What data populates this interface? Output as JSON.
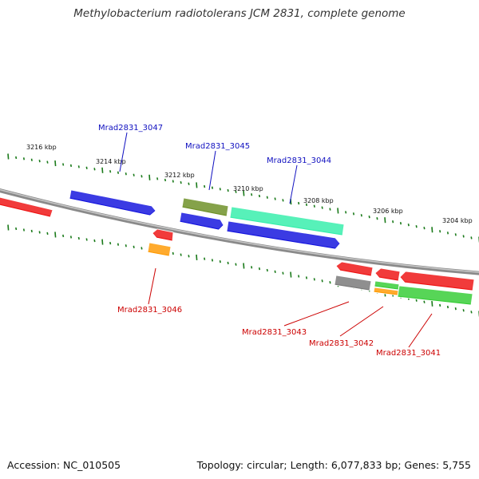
{
  "title": "Methylobacterium radiotolerans JCM 2831, complete genome",
  "footer": {
    "accession": "Accession: NC_010505",
    "summary": "Topology: circular; Length: 6,077,833 bp; Genes: 5,755"
  },
  "colors": {
    "backbone": "#7a7a7a",
    "tick": "#1a7a1a",
    "label_blue": "#1010c0",
    "label_red": "#cc0000",
    "red": "#ee1111",
    "blue": "#1111dd",
    "olive": "#6b8e23",
    "aquamarine": "#33eeaa",
    "orange": "#ff9900",
    "grey": "#777777",
    "green": "#33cc33"
  },
  "kbp_ticks": [
    "3216 kbp",
    "3214 kbp",
    "3212 kbp",
    "3210 kbp",
    "3208 kbp",
    "3206 kbp",
    "3204 kbp"
  ],
  "gene_labels": [
    {
      "text": "Mrad2831_3047",
      "color": "label_blue"
    },
    {
      "text": "Mrad2831_3045",
      "color": "label_blue"
    },
    {
      "text": "Mrad2831_3044",
      "color": "label_blue"
    },
    {
      "text": "Mrad2831_3046",
      "color": "label_red"
    },
    {
      "text": "Mrad2831_3043",
      "color": "label_red"
    },
    {
      "text": "Mrad2831_3042",
      "color": "label_red"
    },
    {
      "text": "Mrad2831_3041",
      "color": "label_red"
    }
  ],
  "features": [
    {
      "color": "red"
    },
    {
      "color": "blue"
    },
    {
      "color": "olive"
    },
    {
      "color": "blue"
    },
    {
      "color": "aquamarine"
    },
    {
      "color": "blue"
    },
    {
      "color": "red"
    },
    {
      "color": "orange"
    },
    {
      "color": "red"
    },
    {
      "color": "grey"
    },
    {
      "color": "red"
    },
    {
      "color": "green"
    },
    {
      "color": "orange"
    },
    {
      "color": "red"
    },
    {
      "color": "green"
    }
  ]
}
